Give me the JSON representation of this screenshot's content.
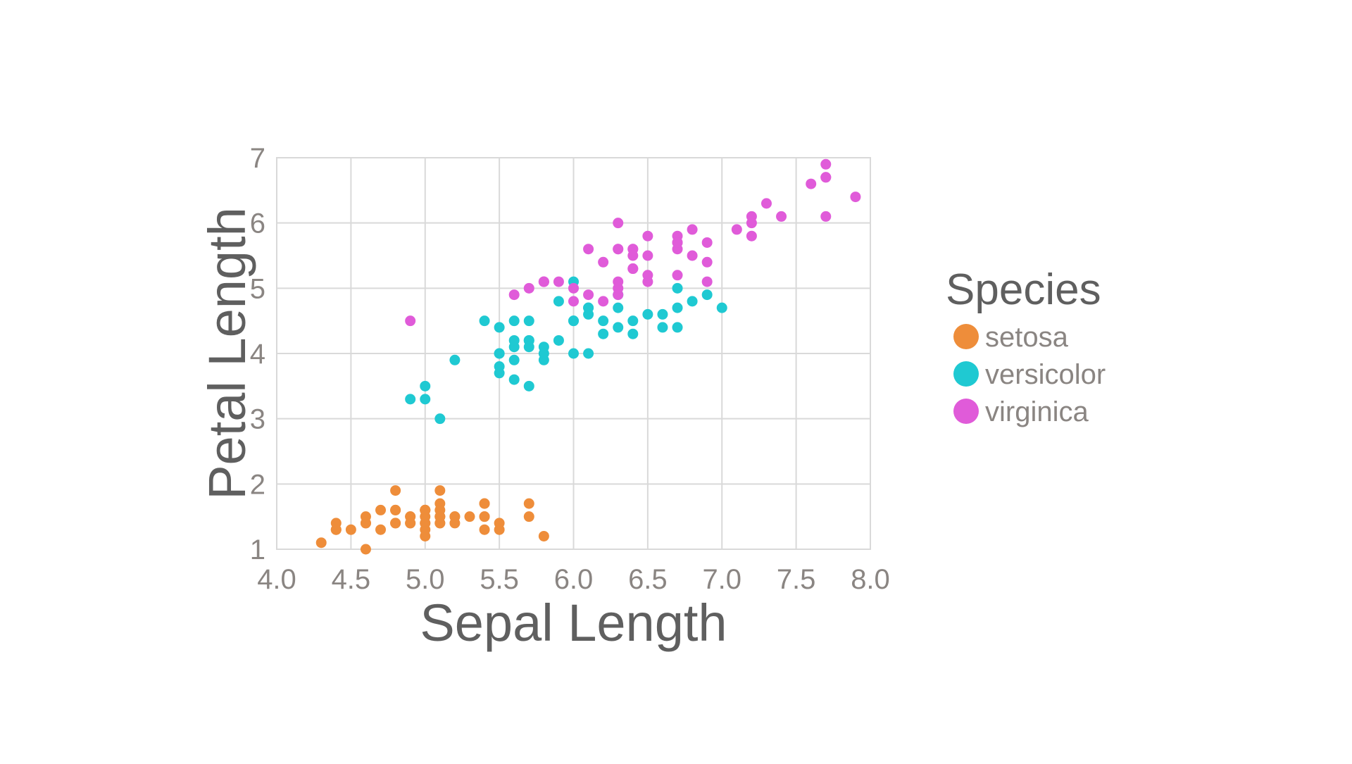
{
  "chart_data": {
    "type": "scatter",
    "xlabel": "Sepal Length",
    "ylabel": "Petal Length",
    "xlim": [
      4.0,
      8.0
    ],
    "ylim": [
      1,
      7
    ],
    "x_ticks": [
      "4.0",
      "4.5",
      "5.0",
      "5.5",
      "6.0",
      "6.5",
      "7.0",
      "7.5",
      "8.0"
    ],
    "y_ticks": [
      "1",
      "2",
      "3",
      "4",
      "5",
      "6",
      "7"
    ],
    "grid": true,
    "legend": {
      "title": "Species",
      "placement": "right"
    },
    "series": [
      {
        "name": "setosa",
        "color": "#ee8d3a",
        "points": [
          [
            5.1,
            1.4
          ],
          [
            4.9,
            1.4
          ],
          [
            4.7,
            1.3
          ],
          [
            4.6,
            1.5
          ],
          [
            5.0,
            1.4
          ],
          [
            5.4,
            1.7
          ],
          [
            4.6,
            1.4
          ],
          [
            5.0,
            1.5
          ],
          [
            4.4,
            1.4
          ],
          [
            4.9,
            1.5
          ],
          [
            5.4,
            1.5
          ],
          [
            4.8,
            1.6
          ],
          [
            4.8,
            1.4
          ],
          [
            4.3,
            1.1
          ],
          [
            5.8,
            1.2
          ],
          [
            5.7,
            1.5
          ],
          [
            5.4,
            1.3
          ],
          [
            5.1,
            1.4
          ],
          [
            5.7,
            1.7
          ],
          [
            5.1,
            1.5
          ],
          [
            5.4,
            1.7
          ],
          [
            5.1,
            1.5
          ],
          [
            4.6,
            1.0
          ],
          [
            5.1,
            1.7
          ],
          [
            4.8,
            1.9
          ],
          [
            5.0,
            1.6
          ],
          [
            5.0,
            1.6
          ],
          [
            5.2,
            1.5
          ],
          [
            5.2,
            1.4
          ],
          [
            4.7,
            1.6
          ],
          [
            4.8,
            1.6
          ],
          [
            5.4,
            1.5
          ],
          [
            5.2,
            1.5
          ],
          [
            5.5,
            1.4
          ],
          [
            4.9,
            1.5
          ],
          [
            5.0,
            1.2
          ],
          [
            5.5,
            1.3
          ],
          [
            4.9,
            1.4
          ],
          [
            4.4,
            1.3
          ],
          [
            5.1,
            1.5
          ],
          [
            5.0,
            1.3
          ],
          [
            4.5,
            1.3
          ],
          [
            4.4,
            1.3
          ],
          [
            5.0,
            1.6
          ],
          [
            5.1,
            1.9
          ],
          [
            4.8,
            1.4
          ],
          [
            5.1,
            1.6
          ],
          [
            4.6,
            1.4
          ],
          [
            5.3,
            1.5
          ],
          [
            5.0,
            1.4
          ]
        ]
      },
      {
        "name": "versicolor",
        "color": "#1fc9d2",
        "points": [
          [
            7.0,
            4.7
          ],
          [
            6.4,
            4.5
          ],
          [
            6.9,
            4.9
          ],
          [
            5.5,
            4.0
          ],
          [
            6.5,
            4.6
          ],
          [
            5.7,
            4.5
          ],
          [
            6.3,
            4.7
          ],
          [
            4.9,
            3.3
          ],
          [
            6.6,
            4.6
          ],
          [
            5.2,
            3.9
          ],
          [
            5.0,
            3.5
          ],
          [
            5.9,
            4.2
          ],
          [
            6.0,
            4.0
          ],
          [
            6.1,
            4.7
          ],
          [
            5.6,
            3.6
          ],
          [
            6.7,
            4.4
          ],
          [
            5.6,
            4.5
          ],
          [
            5.8,
            4.1
          ],
          [
            6.2,
            4.5
          ],
          [
            5.6,
            3.9
          ],
          [
            5.9,
            4.8
          ],
          [
            6.1,
            4.0
          ],
          [
            6.3,
            4.9
          ],
          [
            6.1,
            4.7
          ],
          [
            6.4,
            4.3
          ],
          [
            6.6,
            4.4
          ],
          [
            6.8,
            4.8
          ],
          [
            6.7,
            5.0
          ],
          [
            6.0,
            4.5
          ],
          [
            5.7,
            3.5
          ],
          [
            5.5,
            3.8
          ],
          [
            5.5,
            3.7
          ],
          [
            5.8,
            3.9
          ],
          [
            6.0,
            5.1
          ],
          [
            5.4,
            4.5
          ],
          [
            6.0,
            4.5
          ],
          [
            6.7,
            4.7
          ],
          [
            6.3,
            4.4
          ],
          [
            5.6,
            4.1
          ],
          [
            5.5,
            4.0
          ],
          [
            5.5,
            4.4
          ],
          [
            6.1,
            4.6
          ],
          [
            5.8,
            4.0
          ],
          [
            5.0,
            3.3
          ],
          [
            5.6,
            4.2
          ],
          [
            5.7,
            4.2
          ],
          [
            5.7,
            4.2
          ],
          [
            6.2,
            4.3
          ],
          [
            5.1,
            3.0
          ],
          [
            5.7,
            4.1
          ]
        ]
      },
      {
        "name": "virginica",
        "color": "#e05bd9",
        "points": [
          [
            6.3,
            6.0
          ],
          [
            5.8,
            5.1
          ],
          [
            7.1,
            5.9
          ],
          [
            6.3,
            5.6
          ],
          [
            6.5,
            5.8
          ],
          [
            7.6,
            6.6
          ],
          [
            4.9,
            4.5
          ],
          [
            7.3,
            6.3
          ],
          [
            6.7,
            5.8
          ],
          [
            7.2,
            6.1
          ],
          [
            6.5,
            5.1
          ],
          [
            6.4,
            5.3
          ],
          [
            6.8,
            5.5
          ],
          [
            5.7,
            5.0
          ],
          [
            5.8,
            5.1
          ],
          [
            6.4,
            5.3
          ],
          [
            6.5,
            5.5
          ],
          [
            7.7,
            6.7
          ],
          [
            7.7,
            6.9
          ],
          [
            6.0,
            5.0
          ],
          [
            6.9,
            5.7
          ],
          [
            5.6,
            4.9
          ],
          [
            7.7,
            6.7
          ],
          [
            6.3,
            4.9
          ],
          [
            6.7,
            5.7
          ],
          [
            7.2,
            6.0
          ],
          [
            6.2,
            4.8
          ],
          [
            6.1,
            4.9
          ],
          [
            6.4,
            5.6
          ],
          [
            7.2,
            5.8
          ],
          [
            7.4,
            6.1
          ],
          [
            7.9,
            6.4
          ],
          [
            6.4,
            5.6
          ],
          [
            6.3,
            5.1
          ],
          [
            6.1,
            5.6
          ],
          [
            7.7,
            6.1
          ],
          [
            6.3,
            5.6
          ],
          [
            6.4,
            5.5
          ],
          [
            6.0,
            4.8
          ],
          [
            6.9,
            5.4
          ],
          [
            6.7,
            5.6
          ],
          [
            6.9,
            5.1
          ],
          [
            5.8,
            5.1
          ],
          [
            6.8,
            5.9
          ],
          [
            6.7,
            5.7
          ],
          [
            6.7,
            5.2
          ],
          [
            6.3,
            5.0
          ],
          [
            6.5,
            5.2
          ],
          [
            6.2,
            5.4
          ],
          [
            5.9,
            5.1
          ]
        ]
      }
    ]
  }
}
